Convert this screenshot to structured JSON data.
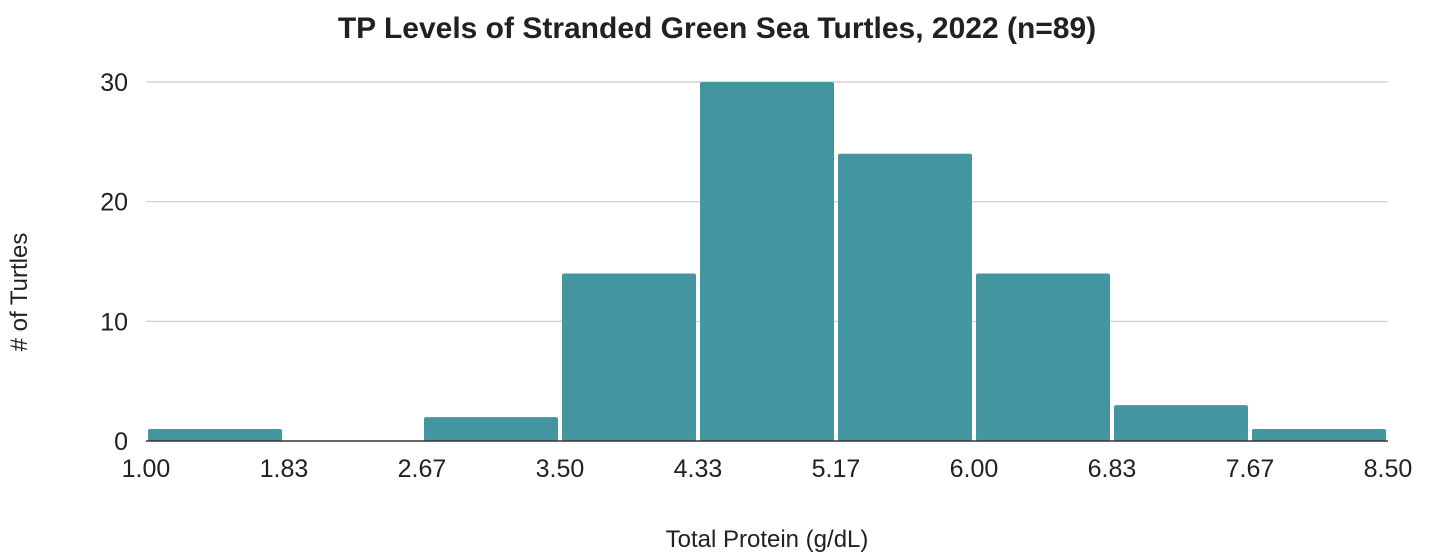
{
  "chart_data": {
    "type": "bar",
    "title": "TP Levels of Stranded Green Sea Turtles, 2022 (n=89)",
    "xlabel": "Total Protein (g/dL)",
    "ylabel": "# of Turtles",
    "bin_edges": [
      "1.00",
      "1.83",
      "2.67",
      "3.50",
      "4.33",
      "5.17",
      "6.00",
      "6.83",
      "7.67",
      "8.50"
    ],
    "values": [
      1,
      0,
      2,
      14,
      30,
      24,
      14,
      3,
      1
    ],
    "ylim": [
      0,
      30
    ],
    "yticks": [
      0,
      10,
      20,
      30
    ],
    "bar_color": "#4396a0",
    "grid": true
  }
}
